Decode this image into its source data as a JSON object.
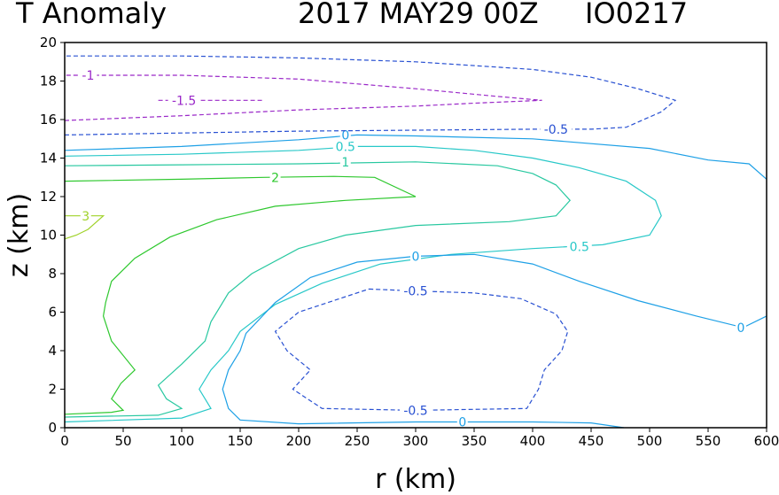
{
  "header": {
    "title": "T Anomaly",
    "date": "2017 MAY29 00Z",
    "storm_id": "IO0217"
  },
  "chart_data": {
    "type": "contour",
    "title": "T Anomaly",
    "xlabel": "r (km)",
    "ylabel": "z (km)",
    "xlim": [
      0,
      600
    ],
    "ylim": [
      0,
      20
    ],
    "xticks": [
      0,
      50,
      100,
      150,
      200,
      250,
      300,
      350,
      400,
      450,
      500,
      550,
      600
    ],
    "yticks": [
      0,
      2,
      4,
      6,
      8,
      10,
      12,
      14,
      16,
      18,
      20
    ],
    "contours": [
      {
        "level": "3",
        "color": "#a0d22a",
        "dashed": false,
        "points": [
          [
            0,
            11.0
          ],
          [
            33,
            11.0
          ],
          [
            20,
            10.3
          ],
          [
            10,
            10.0
          ],
          [
            0,
            9.8
          ]
        ],
        "labels": [
          {
            "text": "3",
            "x": 18,
            "y": 11.0
          }
        ]
      },
      {
        "level": "2",
        "color": "#2ec82e",
        "dashed": false,
        "points": [
          [
            0,
            12.8
          ],
          [
            100,
            12.9
          ],
          [
            170,
            13.0
          ],
          [
            230,
            13.05
          ],
          [
            265,
            13.0
          ],
          [
            300,
            12.0
          ],
          [
            240,
            11.8
          ],
          [
            180,
            11.5
          ],
          [
            130,
            10.8
          ],
          [
            90,
            9.9
          ],
          [
            60,
            8.8
          ],
          [
            40,
            7.6
          ],
          [
            35,
            6.5
          ],
          [
            33,
            5.8
          ],
          [
            40,
            4.5
          ],
          [
            60,
            3.0
          ],
          [
            48,
            2.3
          ],
          [
            40,
            1.5
          ],
          [
            50,
            0.9
          ],
          [
            40,
            0.8
          ],
          [
            0,
            0.7
          ]
        ],
        "labels": [
          {
            "text": "2",
            "x": 180,
            "y": 13.0
          }
        ]
      },
      {
        "level": "1",
        "color": "#28c8a0",
        "dashed": false,
        "points": [
          [
            0,
            13.6
          ],
          [
            100,
            13.65
          ],
          [
            200,
            13.7
          ],
          [
            300,
            13.8
          ],
          [
            370,
            13.6
          ],
          [
            400,
            13.2
          ],
          [
            420,
            12.6
          ],
          [
            432,
            11.8
          ],
          [
            420,
            11.0
          ],
          [
            380,
            10.7
          ],
          [
            300,
            10.5
          ],
          [
            240,
            10.0
          ],
          [
            200,
            9.3
          ],
          [
            160,
            8.0
          ],
          [
            140,
            7.0
          ],
          [
            125,
            5.5
          ],
          [
            120,
            4.5
          ],
          [
            100,
            3.3
          ],
          [
            80,
            2.2
          ],
          [
            87,
            1.5
          ],
          [
            100,
            1.0
          ],
          [
            80,
            0.65
          ],
          [
            0,
            0.55
          ]
        ],
        "labels": [
          {
            "text": "1",
            "x": 240,
            "y": 13.8
          }
        ]
      },
      {
        "level": "0.5",
        "color": "#28c8c8",
        "dashed": false,
        "points": [
          [
            0,
            14.1
          ],
          [
            100,
            14.2
          ],
          [
            200,
            14.4
          ],
          [
            250,
            14.6
          ],
          [
            300,
            14.6
          ],
          [
            350,
            14.4
          ],
          [
            400,
            14.0
          ],
          [
            440,
            13.5
          ],
          [
            480,
            12.8
          ],
          [
            505,
            11.8
          ],
          [
            510,
            11.0
          ],
          [
            500,
            10.0
          ],
          [
            460,
            9.5
          ],
          [
            400,
            9.3
          ],
          [
            330,
            9.0
          ],
          [
            270,
            8.5
          ],
          [
            220,
            7.5
          ],
          [
            180,
            6.4
          ],
          [
            150,
            5.0
          ],
          [
            140,
            4.0
          ],
          [
            125,
            3.0
          ],
          [
            115,
            2.0
          ],
          [
            125,
            1.0
          ],
          [
            100,
            0.5
          ],
          [
            0,
            0.3
          ]
        ],
        "labels": [
          {
            "text": "0.5",
            "x": 240,
            "y": 14.6
          },
          {
            "text": "0.5",
            "x": 440,
            "y": 9.4
          }
        ]
      },
      {
        "level": "0",
        "color": "#1ea0e6",
        "dashed": false,
        "points": [
          [
            0,
            14.4
          ],
          [
            100,
            14.6
          ],
          [
            200,
            14.95
          ],
          [
            250,
            15.2
          ],
          [
            300,
            15.15
          ],
          [
            400,
            15.0
          ],
          [
            500,
            14.5
          ],
          [
            550,
            13.9
          ],
          [
            585,
            13.7
          ],
          [
            600,
            12.9
          ]
        ],
        "labels": [
          {
            "text": "0",
            "x": 240,
            "y": 15.2
          }
        ]
      },
      {
        "level": "0",
        "color": "#1ea0e6",
        "dashed": false,
        "points": [
          [
            600,
            5.8
          ],
          [
            580,
            5.2
          ],
          [
            540,
            5.8
          ],
          [
            490,
            6.6
          ],
          [
            440,
            7.6
          ],
          [
            400,
            8.5
          ],
          [
            350,
            9.0
          ],
          [
            300,
            8.9
          ],
          [
            250,
            8.6
          ],
          [
            210,
            7.8
          ],
          [
            180,
            6.5
          ],
          [
            155,
            4.9
          ],
          [
            150,
            4.0
          ],
          [
            140,
            3.0
          ],
          [
            135,
            2.0
          ],
          [
            140,
            1.0
          ],
          [
            150,
            0.4
          ],
          [
            200,
            0.2
          ],
          [
            300,
            0.3
          ],
          [
            400,
            0.3
          ],
          [
            450,
            0.25
          ],
          [
            478,
            0
          ]
        ],
        "labels": [
          {
            "text": "0",
            "x": 300,
            "y": 8.9
          },
          {
            "text": "0",
            "x": 578,
            "y": 5.2
          },
          {
            "text": "0",
            "x": 340,
            "y": 0.3
          }
        ]
      },
      {
        "level": "-0.5",
        "color": "#2850d2",
        "dashed": true,
        "points": [
          [
            0,
            15.2
          ],
          [
            100,
            15.3
          ],
          [
            200,
            15.4
          ],
          [
            300,
            15.45
          ],
          [
            400,
            15.5
          ],
          [
            450,
            15.5
          ],
          [
            480,
            15.6
          ],
          [
            510,
            16.4
          ],
          [
            522,
            17.0
          ],
          [
            490,
            17.6
          ],
          [
            450,
            18.2
          ],
          [
            400,
            18.6
          ],
          [
            300,
            19.0
          ],
          [
            200,
            19.2
          ],
          [
            100,
            19.3
          ],
          [
            0,
            19.3
          ]
        ],
        "labels": [
          {
            "text": "-0.5",
            "x": 420,
            "y": 15.5
          }
        ]
      },
      {
        "level": "-0.5",
        "color": "#2850d2",
        "dashed": true,
        "points": [
          [
            260,
            7.2
          ],
          [
            300,
            7.1
          ],
          [
            350,
            7.0
          ],
          [
            390,
            6.7
          ],
          [
            420,
            5.9
          ],
          [
            430,
            5.0
          ],
          [
            425,
            4.0
          ],
          [
            410,
            3.0
          ],
          [
            405,
            2.0
          ],
          [
            395,
            1.0
          ],
          [
            300,
            0.9
          ],
          [
            220,
            1.0
          ],
          [
            195,
            2.0
          ],
          [
            210,
            3.0
          ],
          [
            190,
            4.0
          ],
          [
            180,
            5.0
          ],
          [
            200,
            6.0
          ],
          [
            260,
            7.2
          ]
        ],
        "labels": [
          {
            "text": "-0.5",
            "x": 300,
            "y": 7.1
          },
          {
            "text": "-0.5",
            "x": 300,
            "y": 0.9
          }
        ]
      },
      {
        "level": "-1",
        "color": "#9a28c8",
        "dashed": true,
        "points": [
          [
            0,
            15.95
          ],
          [
            100,
            16.2
          ],
          [
            200,
            16.5
          ],
          [
            300,
            16.7
          ],
          [
            350,
            16.85
          ],
          [
            408,
            17.0
          ],
          [
            370,
            17.2
          ],
          [
            300,
            17.6
          ],
          [
            200,
            18.1
          ],
          [
            100,
            18.3
          ],
          [
            0,
            18.3
          ]
        ],
        "labels": [
          {
            "text": "-1",
            "x": 20,
            "y": 18.3
          }
        ]
      },
      {
        "level": "-1.5",
        "color": "#9a28c8",
        "dashed": true,
        "points": [
          [
            80,
            17.0
          ],
          [
            170,
            17.0
          ]
        ],
        "labels": [
          {
            "text": "-1.5",
            "x": 102,
            "y": 17.0
          }
        ]
      }
    ]
  }
}
